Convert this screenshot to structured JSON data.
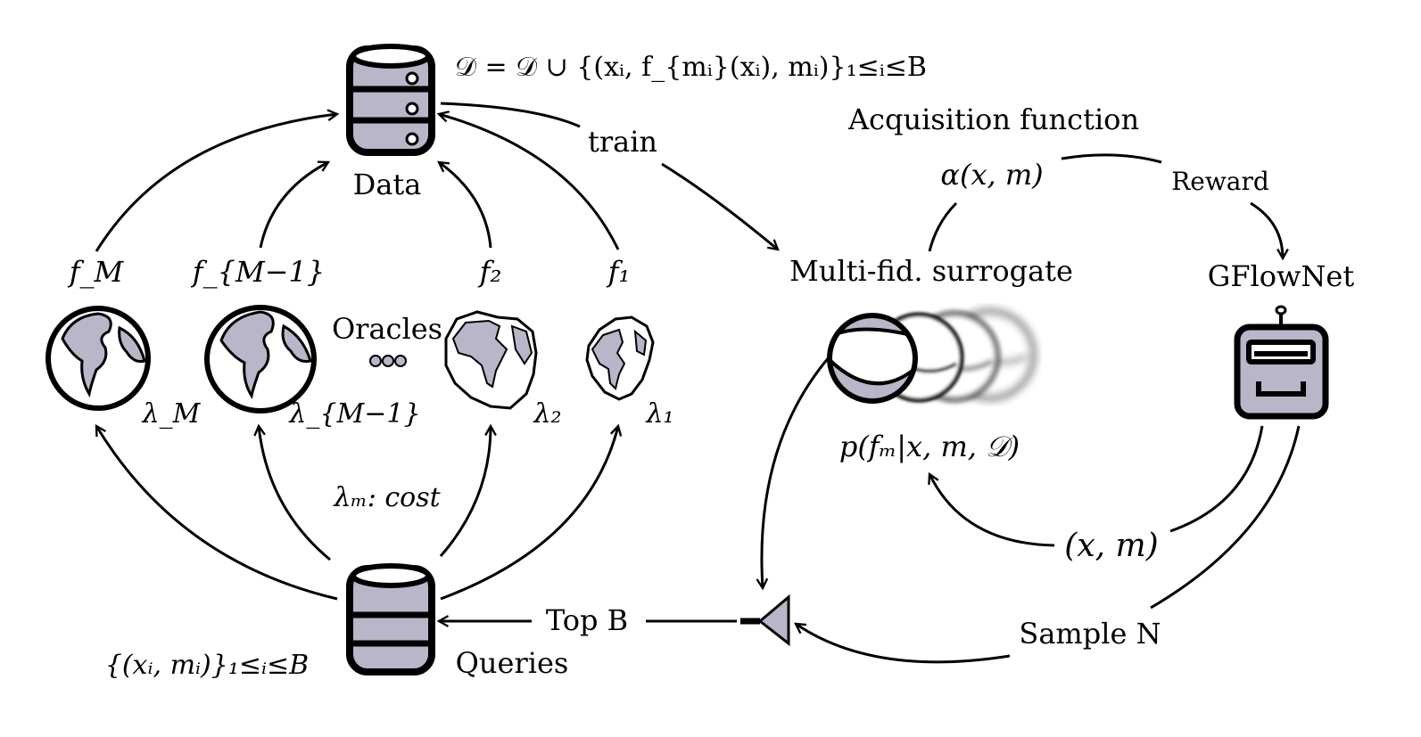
{
  "formula_update": "𝒟 = 𝒟 ∪ {(xᵢ, f_{mᵢ}(xᵢ), mᵢ)}₁≤ᵢ≤B",
  "data_label": "Data",
  "train_label": "train",
  "acquisition_label": "Acquisition function",
  "alpha_label": "α(x, m)",
  "reward_label": "Reward",
  "surrogate_label": "Multi-fid. surrogate",
  "gflownet_label": "GFlowNet",
  "posterior_label": "p(fₘ|x, m, 𝒟)",
  "xm_label": "(x, m)",
  "sample_label": "Sample N",
  "topb_label": "Top B",
  "queries_label": "Queries",
  "queries_set_label": "{(xᵢ, mᵢ)}₁≤ᵢ≤B",
  "cost_label": "λₘ: cost",
  "oracles_label": "Oracles",
  "oracles": [
    {
      "f": "f_M",
      "lambda": "λ_M"
    },
    {
      "f": "f_{M−1}",
      "lambda": "λ_{M−1}"
    },
    {
      "f": "f₂",
      "lambda": "λ₂"
    },
    {
      "f": "f₁",
      "lambda": "λ₁"
    }
  ],
  "colors": {
    "fill": "#b9b6c9",
    "stroke": "#000000",
    "background": "#ffffff"
  }
}
